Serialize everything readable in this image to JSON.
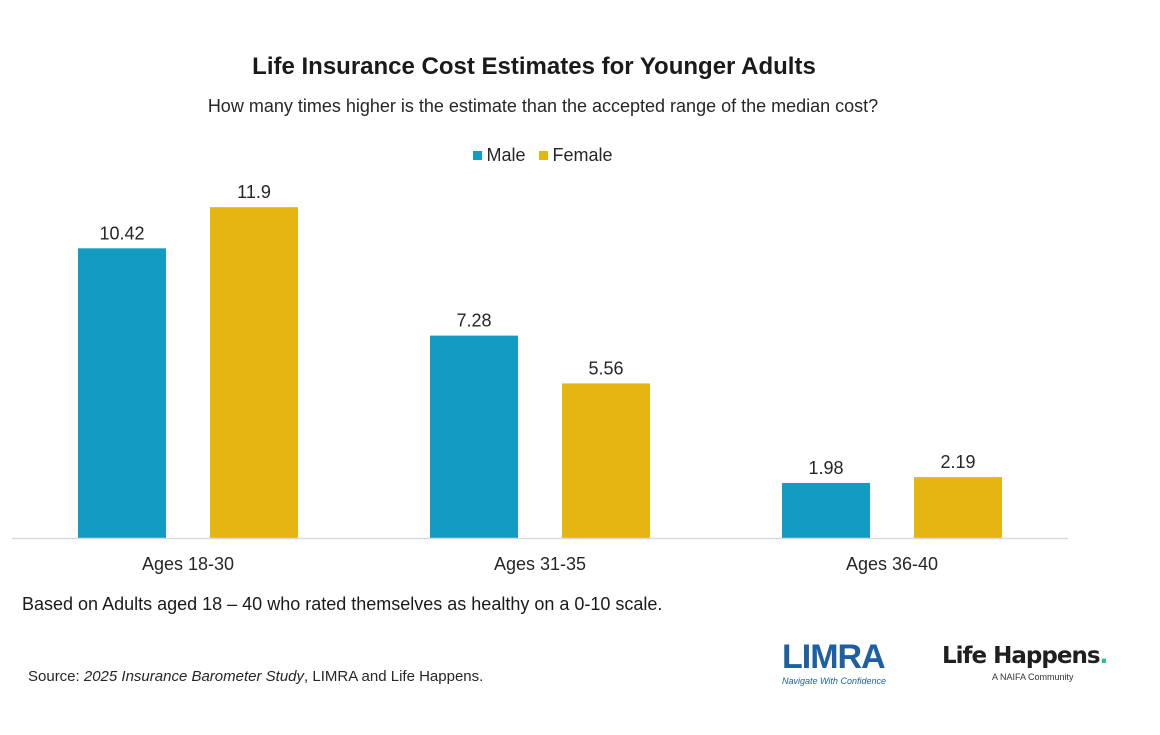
{
  "chart_data": {
    "type": "bar",
    "title": "Life Insurance Cost Estimates for Younger Adults",
    "subtitle": "How many times higher is the estimate than the accepted range of the median cost?",
    "categories": [
      "Ages 18-30",
      "Ages 31-35",
      "Ages 36-40"
    ],
    "series": [
      {
        "name": "Male",
        "color": "#149BC1",
        "values": [
          10.42,
          7.28,
          1.98
        ],
        "labels": [
          "10.42",
          "7.28",
          "1.98"
        ]
      },
      {
        "name": "Female",
        "color": "#E5B511",
        "values": [
          11.9,
          5.56,
          2.19
        ],
        "labels": [
          "11.9",
          "5.56",
          "2.19"
        ]
      }
    ],
    "xlabel": "",
    "ylabel": "",
    "ylim": [
      0,
      12
    ],
    "grid": false,
    "legend": "top-center",
    "data_labels": true
  },
  "footnote": "Based on Adults aged 18 – 40 who rated themselves as healthy on a 0-10 scale.",
  "source": {
    "prefix": "Source: ",
    "study": "2025 Insurance Barometer Study",
    "suffix": ", LIMRA and Life Happens."
  },
  "logos": {
    "limra": {
      "name": "LIMRA",
      "tagline": "Navigate With Confidence"
    },
    "life_happens": {
      "name": "Life Happens",
      "dot": ".",
      "tagline": "A NAIFA Community"
    }
  }
}
